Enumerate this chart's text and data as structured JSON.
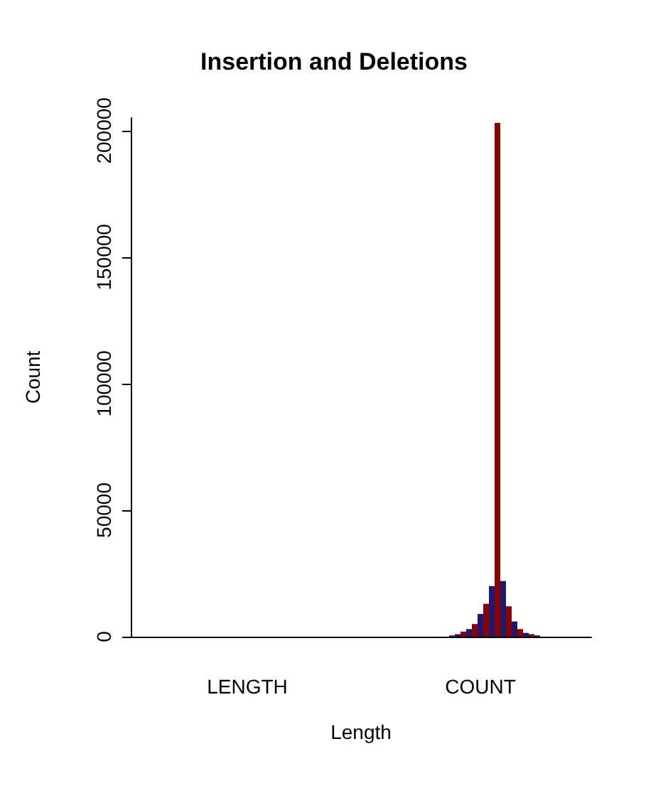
{
  "chart_data": {
    "type": "bar",
    "title": "Insertion and Deletions",
    "xlabel": "Length",
    "ylabel": "Count",
    "categories": [
      null,
      null,
      null,
      null,
      null,
      null,
      null,
      null,
      null,
      null,
      null,
      null,
      null,
      null,
      null,
      null,
      null,
      null,
      null,
      null,
      "LENGTH",
      null,
      null,
      null,
      null,
      null,
      null,
      null,
      null,
      null,
      null,
      null,
      null,
      null,
      null,
      null,
      null,
      null,
      null,
      null,
      null,
      null,
      null,
      null,
      null,
      null,
      null,
      null,
      null,
      null,
      null,
      null,
      null,
      null,
      null,
      null,
      null,
      null,
      null,
      null,
      null,
      "COUNT",
      null,
      null,
      null,
      null,
      null,
      null,
      null,
      null,
      null,
      null,
      null,
      null,
      null,
      null,
      null,
      null,
      null,
      null,
      null
    ],
    "values": [
      0,
      0,
      0,
      0,
      0,
      0,
      0,
      0,
      0,
      0,
      0,
      0,
      0,
      0,
      0,
      0,
      0,
      0,
      0,
      0,
      0,
      0,
      0,
      0,
      0,
      0,
      0,
      0,
      0,
      0,
      0,
      0,
      0,
      0,
      0,
      0,
      0,
      0,
      0,
      0,
      null,
      0,
      0,
      0,
      0,
      0,
      0,
      0,
      0,
      0,
      0,
      0,
      0,
      0,
      0,
      0,
      500,
      1000,
      2000,
      3000,
      5000,
      9000,
      13000,
      20000,
      203000,
      22000,
      12000,
      6000,
      3000,
      1500,
      1000,
      500,
      0,
      0,
      0,
      0,
      0,
      0,
      0,
      0,
      0
    ],
    "colors": [
      "#191970",
      "#8b0000",
      "#191970",
      "#8b0000",
      "#191970",
      "#8b0000",
      "#191970",
      "#8b0000",
      "#191970",
      "#8b0000",
      "#191970",
      "#8b0000",
      "#191970",
      "#8b0000",
      "#191970",
      "#8b0000",
      "#191970",
      "#8b0000",
      "#191970",
      "#8b0000",
      "#191970",
      "#8b0000",
      "#191970",
      "#8b0000",
      "#191970",
      "#8b0000",
      "#191970",
      "#8b0000",
      "#191970",
      "#8b0000",
      "#191970",
      "#8b0000",
      "#191970",
      "#8b0000",
      "#191970",
      "#8b0000",
      "#191970",
      "#8b0000",
      "#191970",
      "#8b0000",
      "#ffffff",
      "#191970",
      "#8b0000",
      "#191970",
      "#8b0000",
      "#191970",
      "#8b0000",
      "#191970",
      "#8b0000",
      "#191970",
      "#8b0000",
      "#191970",
      "#8b0000",
      "#191970",
      "#8b0000",
      "#191970",
      "#8b0000",
      "#191970",
      "#8b0000",
      "#191970",
      "#8b0000",
      "#191970",
      "#8b0000",
      "#191970",
      "#8b0000",
      "#191970",
      "#8b0000",
      "#191970",
      "#8b0000",
      "#191970",
      "#8b0000",
      "#191970",
      "#8b0000",
      "#191970",
      "#8b0000",
      "#191970",
      "#8b0000",
      "#191970",
      "#8b0000",
      "#191970",
      "#8b0000"
    ],
    "ylim": [
      0,
      205000
    ],
    "yticks": [
      0,
      50000,
      100000,
      150000,
      200000
    ],
    "grid": false
  }
}
